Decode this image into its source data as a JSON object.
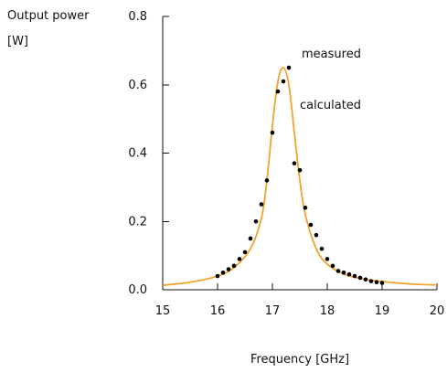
{
  "chart_data": {
    "type": "scatter",
    "title": "",
    "xlabel": "Frequency [GHz]",
    "ylabel_line1": "Output power",
    "ylabel_line2": "[W]",
    "xlim": [
      15,
      20
    ],
    "ylim": [
      0,
      0.8
    ],
    "x_ticks": [
      15,
      16,
      17,
      18,
      19,
      20
    ],
    "x_tick_labels": [
      "15",
      "16",
      "17",
      "18",
      "19",
      "20"
    ],
    "y_ticks": [
      0,
      0.2,
      0.4,
      0.6,
      0.8
    ],
    "y_tick_labels": [
      "0.0",
      "0.2",
      "0.4",
      "0.6",
      "0.8"
    ],
    "grid": false,
    "legend": "none",
    "series": [
      {
        "name": "measured",
        "type": "scatter",
        "color": "#000000",
        "x": [
          16.0,
          16.1,
          16.2,
          16.3,
          16.4,
          16.5,
          16.6,
          16.7,
          16.8,
          16.9,
          17.0,
          17.1,
          17.2,
          17.3,
          17.4,
          17.5,
          17.6,
          17.7,
          17.8,
          17.9,
          18.0,
          18.1,
          18.2,
          18.3,
          18.4,
          18.5,
          18.6,
          18.7,
          18.8,
          18.9,
          19.0
        ],
        "y": [
          0.04,
          0.05,
          0.06,
          0.07,
          0.09,
          0.11,
          0.15,
          0.2,
          0.25,
          0.32,
          0.46,
          0.58,
          0.61,
          0.65,
          0.37,
          0.35,
          0.24,
          0.19,
          0.16,
          0.12,
          0.09,
          0.07,
          0.055,
          0.05,
          0.045,
          0.04,
          0.035,
          0.03,
          0.025,
          0.022,
          0.02
        ]
      },
      {
        "name": "calculated",
        "type": "line",
        "color": "#f0a32c",
        "x": [
          15.0,
          15.5,
          16.0,
          16.3,
          16.6,
          16.8,
          16.9,
          17.0,
          17.1,
          17.2,
          17.3,
          17.4,
          17.5,
          17.6,
          17.8,
          18.0,
          18.3,
          18.6,
          19.0,
          19.5,
          20.0
        ],
        "y": [
          0.013,
          0.022,
          0.04,
          0.065,
          0.12,
          0.21,
          0.32,
          0.48,
          0.61,
          0.65,
          0.6,
          0.46,
          0.32,
          0.22,
          0.12,
          0.075,
          0.046,
          0.033,
          0.024,
          0.017,
          0.014
        ]
      }
    ]
  }
}
